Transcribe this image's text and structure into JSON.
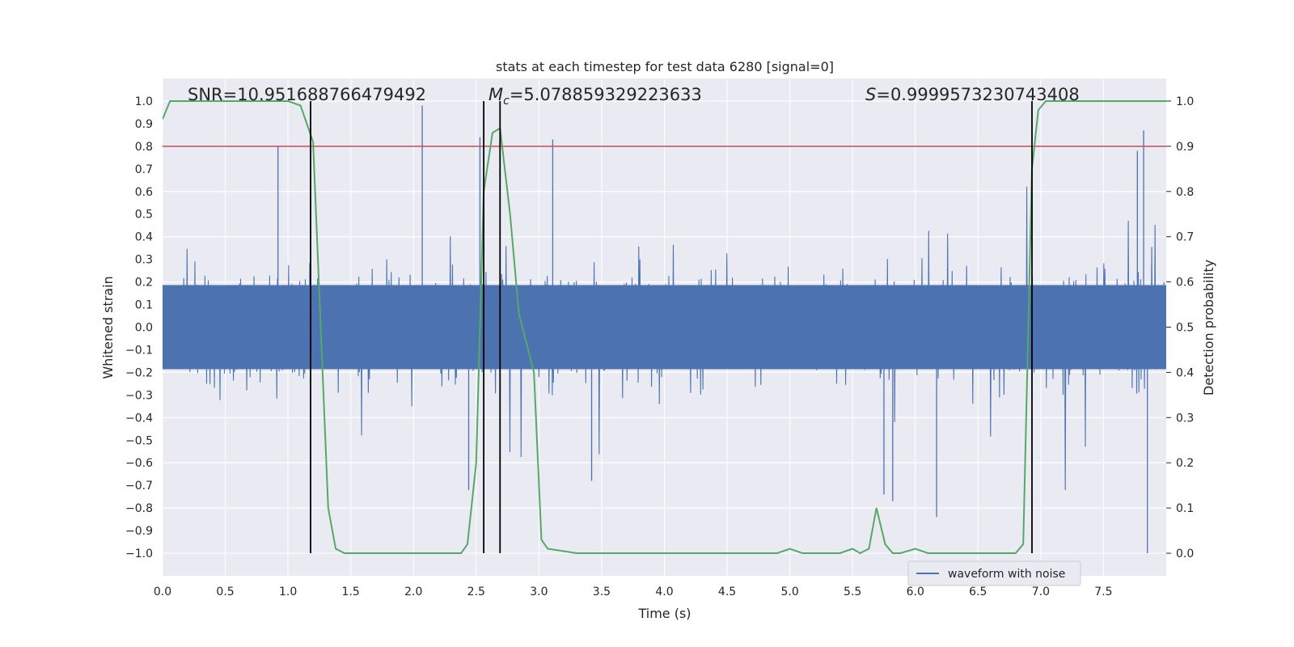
{
  "chart_data": {
    "type": "line",
    "title": "stats at each timestep for test data 6280 [signal=0]",
    "xlabel": "Time (s)",
    "ylabel_left": "Whitened strain",
    "ylabel_right": "Detection probability",
    "xlim": [
      0.0,
      8.0
    ],
    "ylim_left": [
      -1.1,
      1.1
    ],
    "ylim_right": [
      -0.05,
      1.05
    ],
    "xticks": [
      "0.0",
      "0.5",
      "1.0",
      "1.5",
      "2.0",
      "2.5",
      "3.0",
      "3.5",
      "4.0",
      "4.5",
      "5.0",
      "5.5",
      "6.0",
      "6.5",
      "7.0",
      "7.5"
    ],
    "yticks_left": [
      "1.0",
      "0.9",
      "0.8",
      "0.7",
      "0.6",
      "0.5",
      "0.4",
      "0.3",
      "0.2",
      "0.1",
      "0.0",
      "−0.1",
      "−0.2",
      "−0.3",
      "−0.4",
      "−0.5",
      "−0.6",
      "−0.7",
      "−0.8",
      "−0.9",
      "−1.0"
    ],
    "yticks_right": [
      "1.0",
      "0.9",
      "0.8",
      "0.7",
      "0.6",
      "0.5",
      "0.4",
      "0.3",
      "0.2",
      "0.1",
      "0.0"
    ],
    "grid": true,
    "annotations": {
      "snr": "SNR=10.951688766479492",
      "mc_symbol": "M",
      "mc_sub": "c",
      "mc_value": "=5.078859329223633",
      "s_symbol": "S",
      "s_value": "=0.9999573230743408"
    },
    "legend": {
      "label": "waveform with noise",
      "placement": "lower-right"
    },
    "threshold_line": {
      "axis": "right",
      "value": 0.9,
      "color": "#c44e52"
    },
    "vertical_lines": [
      1.18,
      2.56,
      2.69,
      6.93
    ],
    "waveform": {
      "name": "waveform with noise",
      "color": "#4c72b0",
      "duration": 8.0,
      "samples": 1800,
      "envelope": 0.3,
      "peaks": [
        {
          "t": 0.92,
          "v": 0.8
        },
        {
          "t": 2.07,
          "v": 0.98
        },
        {
          "t": 2.53,
          "v": 0.84
        },
        {
          "t": 3.11,
          "v": 0.83
        },
        {
          "t": 7.82,
          "v": 0.87
        },
        {
          "t": 7.77,
          "v": 0.78
        },
        {
          "t": 7.85,
          "v": -1.0
        },
        {
          "t": 2.44,
          "v": -0.72
        },
        {
          "t": 5.82,
          "v": -0.77
        },
        {
          "t": 6.17,
          "v": -0.84
        },
        {
          "t": 5.75,
          "v": -0.74
        },
        {
          "t": 3.42,
          "v": -0.68
        }
      ]
    },
    "detection_probability": {
      "name": "detection probability",
      "color": "#55a868",
      "x": [
        0.0,
        0.06,
        0.2,
        0.5,
        0.8,
        1.0,
        1.1,
        1.2,
        1.32,
        1.38,
        1.45,
        1.6,
        2.0,
        2.3,
        2.38,
        2.43,
        2.5,
        2.56,
        2.63,
        2.69,
        2.77,
        2.84,
        2.96,
        3.02,
        3.07,
        3.3,
        3.5,
        3.8,
        4.0,
        4.5,
        4.9,
        5.0,
        5.1,
        5.4,
        5.5,
        5.56,
        5.63,
        5.69,
        5.76,
        5.82,
        5.88,
        6.0,
        6.1,
        6.2,
        6.3,
        6.5,
        6.6,
        6.8,
        6.86,
        6.93,
        6.98,
        7.04,
        7.2,
        8.0
      ],
      "y": [
        0.96,
        1.0,
        1.0,
        1.0,
        1.0,
        1.0,
        0.99,
        0.91,
        0.1,
        0.01,
        0.0,
        0.0,
        0.0,
        0.0,
        0.0,
        0.02,
        0.2,
        0.8,
        0.93,
        0.94,
        0.75,
        0.53,
        0.4,
        0.03,
        0.01,
        0.0,
        0.0,
        0.0,
        0.0,
        0.0,
        0.0,
        0.01,
        0.0,
        0.0,
        0.01,
        0.0,
        0.01,
        0.1,
        0.02,
        0.0,
        0.0,
        0.01,
        0.0,
        0.0,
        0.0,
        0.0,
        0.0,
        0.0,
        0.02,
        0.85,
        0.98,
        1.0,
        1.0,
        1.0
      ]
    }
  }
}
